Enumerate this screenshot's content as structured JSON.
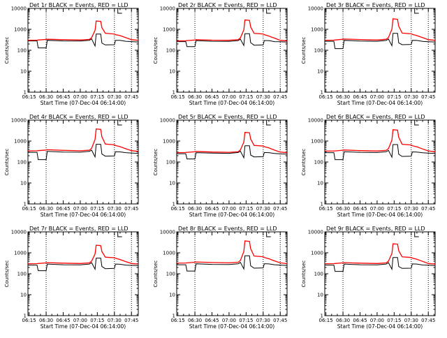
{
  "colors": {
    "events": "#000000",
    "lld": "#ff0000",
    "axis": "#000000",
    "background": "#ffffff"
  },
  "xlabel": "Start Time (07-Dec-04 06:14:00)",
  "ylabel": "Counts/sec",
  "x_tick_labels": [
    "06:15",
    "06:30",
    "06:45",
    "07:00",
    "07:15",
    "07:30",
    "07:45"
  ],
  "y_tick_labels": [
    "1",
    "10",
    "100",
    "1000",
    "10000"
  ],
  "chart_data": [
    {
      "type": "line",
      "title": "Det 1r BLACK = Events, RED = LLD",
      "y_scale": "log",
      "ylim": [
        1,
        10000
      ],
      "xlim": [
        "06:14",
        "07:51"
      ],
      "grid": false,
      "annotation": "dotted vertical markers at 06:30, 07:30, 07:45",
      "x": [
        "06:14",
        "06:22",
        "06:23",
        "06:30",
        "06:31",
        "06:45",
        "07:00",
        "07:08",
        "07:10",
        "07:13",
        "07:14",
        "07:18",
        "07:19",
        "07:22",
        "07:30",
        "07:31",
        "07:35",
        "07:40",
        "07:45",
        "07:51"
      ],
      "series": [
        {
          "name": "Events",
          "color": "#000000",
          "values": [
            280,
            280,
            130,
            130,
            300,
            280,
            275,
            300,
            350,
            160,
            600,
            600,
            220,
            180,
            185,
            300,
            300,
            270,
            260,
            250
          ]
        },
        {
          "name": "LLD",
          "color": "#ff0000",
          "values": [
            300,
            305,
            310,
            330,
            340,
            320,
            310,
            330,
            400,
            900,
            2500,
            2400,
            1200,
            650,
            600,
            560,
            500,
            400,
            320,
            300
          ]
        }
      ]
    },
    {
      "type": "line",
      "title": "Det 2r BLACK = Events, RED = LLD",
      "y_scale": "log",
      "ylim": [
        1,
        10000
      ],
      "xlim": [
        "06:14",
        "07:51"
      ],
      "grid": false,
      "annotation": "dotted vertical markers at 06:30, 07:30, 07:45",
      "x": [
        "06:14",
        "06:22",
        "06:23",
        "06:30",
        "06:31",
        "06:45",
        "07:00",
        "07:08",
        "07:10",
        "07:13",
        "07:14",
        "07:18",
        "07:19",
        "07:22",
        "07:30",
        "07:31",
        "07:35",
        "07:40",
        "07:45",
        "07:51"
      ],
      "series": [
        {
          "name": "Events",
          "color": "#000000",
          "values": [
            260,
            260,
            150,
            150,
            290,
            270,
            265,
            290,
            340,
            170,
            620,
            620,
            230,
            175,
            180,
            290,
            290,
            260,
            255,
            245
          ]
        },
        {
          "name": "LLD",
          "color": "#ff0000",
          "values": [
            280,
            285,
            290,
            310,
            320,
            305,
            300,
            320,
            390,
            950,
            2800,
            2700,
            1300,
            640,
            600,
            560,
            480,
            380,
            300,
            280
          ]
        }
      ]
    },
    {
      "type": "line",
      "title": "Det 3r BLACK = Events, RED = LLD",
      "y_scale": "log",
      "ylim": [
        1,
        10000
      ],
      "xlim": [
        "06:14",
        "07:51"
      ],
      "grid": false,
      "annotation": "dotted vertical markers at 06:30, 07:30, 07:45",
      "x": [
        "06:14",
        "06:22",
        "06:23",
        "06:30",
        "06:31",
        "06:45",
        "07:00",
        "07:08",
        "07:10",
        "07:13",
        "07:14",
        "07:18",
        "07:19",
        "07:22",
        "07:30",
        "07:31",
        "07:35",
        "07:40",
        "07:45",
        "07:51"
      ],
      "series": [
        {
          "name": "Events",
          "color": "#000000",
          "values": [
            270,
            270,
            120,
            120,
            300,
            275,
            270,
            295,
            345,
            165,
            640,
            640,
            225,
            185,
            190,
            300,
            295,
            265,
            258,
            250
          ]
        },
        {
          "name": "LLD",
          "color": "#ff0000",
          "values": [
            300,
            305,
            310,
            335,
            345,
            325,
            310,
            335,
            410,
            1000,
            3200,
            3000,
            1400,
            660,
            610,
            570,
            500,
            400,
            320,
            300
          ]
        }
      ]
    },
    {
      "type": "line",
      "title": "Det 4r BLACK = Events, RED = LLD",
      "y_scale": "log",
      "ylim": [
        1,
        10000
      ],
      "xlim": [
        "06:14",
        "07:51"
      ],
      "grid": false,
      "annotation": "dotted vertical markers at 06:30, 07:30, 07:45",
      "x": [
        "06:14",
        "06:22",
        "06:23",
        "06:30",
        "06:31",
        "06:45",
        "07:00",
        "07:08",
        "07:10",
        "07:13",
        "07:14",
        "07:18",
        "07:19",
        "07:22",
        "07:30",
        "07:31",
        "07:35",
        "07:40",
        "07:45",
        "07:51"
      ],
      "series": [
        {
          "name": "Events",
          "color": "#000000",
          "values": [
            290,
            290,
            130,
            130,
            320,
            300,
            295,
            320,
            370,
            175,
            700,
            700,
            240,
            190,
            195,
            310,
            305,
            280,
            270,
            260
          ]
        },
        {
          "name": "LLD",
          "color": "#ff0000",
          "values": [
            340,
            345,
            350,
            375,
            385,
            360,
            345,
            370,
            450,
            1200,
            3800,
            3600,
            1600,
            720,
            660,
            610,
            540,
            430,
            350,
            320
          ]
        }
      ]
    },
    {
      "type": "line",
      "title": "Det 5r BLACK = Events, RED = LLD",
      "y_scale": "log",
      "ylim": [
        1,
        10000
      ],
      "xlim": [
        "06:14",
        "07:51"
      ],
      "grid": false,
      "annotation": "dotted vertical markers at 06:30, 07:30, 07:45",
      "x": [
        "06:14",
        "06:22",
        "06:23",
        "06:30",
        "06:31",
        "06:45",
        "07:00",
        "07:08",
        "07:10",
        "07:13",
        "07:14",
        "07:18",
        "07:19",
        "07:22",
        "07:30",
        "07:31",
        "07:35",
        "07:40",
        "07:45",
        "07:51"
      ],
      "series": [
        {
          "name": "Events",
          "color": "#000000",
          "values": [
            250,
            250,
            140,
            140,
            280,
            265,
            260,
            285,
            330,
            160,
            600,
            600,
            215,
            175,
            180,
            285,
            280,
            255,
            248,
            240
          ]
        },
        {
          "name": "LLD",
          "color": "#ff0000",
          "values": [
            280,
            285,
            290,
            310,
            320,
            300,
            290,
            310,
            380,
            900,
            2600,
            2500,
            1250,
            620,
            580,
            540,
            470,
            370,
            300,
            280
          ]
        }
      ]
    },
    {
      "type": "line",
      "title": "Det 6r BLACK = Events, RED = LLD",
      "y_scale": "log",
      "ylim": [
        1,
        10000
      ],
      "xlim": [
        "06:14",
        "07:51"
      ],
      "grid": false,
      "annotation": "dotted vertical markers at 06:30, 07:30, 07:45",
      "x": [
        "06:14",
        "06:22",
        "06:23",
        "06:30",
        "06:31",
        "06:45",
        "07:00",
        "07:08",
        "07:10",
        "07:13",
        "07:14",
        "07:18",
        "07:19",
        "07:22",
        "07:30",
        "07:31",
        "07:35",
        "07:40",
        "07:45",
        "07:51"
      ],
      "series": [
        {
          "name": "Events",
          "color": "#000000",
          "values": [
            280,
            280,
            130,
            130,
            310,
            290,
            285,
            310,
            360,
            170,
            680,
            680,
            235,
            185,
            190,
            305,
            300,
            275,
            265,
            255
          ]
        },
        {
          "name": "LLD",
          "color": "#ff0000",
          "values": [
            330,
            335,
            340,
            365,
            375,
            350,
            335,
            360,
            440,
            1100,
            3500,
            3300,
            1500,
            700,
            650,
            600,
            530,
            420,
            340,
            310
          ]
        }
      ]
    },
    {
      "type": "line",
      "title": "Det 7r BLACK = Events, RED = LLD",
      "y_scale": "log",
      "ylim": [
        1,
        10000
      ],
      "xlim": [
        "06:14",
        "07:51"
      ],
      "grid": false,
      "annotation": "dotted vertical markers at 06:30, 07:30, 07:45",
      "x": [
        "06:14",
        "06:22",
        "06:23",
        "06:30",
        "06:31",
        "06:45",
        "07:00",
        "07:08",
        "07:10",
        "07:13",
        "07:14",
        "07:18",
        "07:19",
        "07:22",
        "07:30",
        "07:31",
        "07:35",
        "07:40",
        "07:45",
        "07:51"
      ],
      "series": [
        {
          "name": "Events",
          "color": "#000000",
          "values": [
            260,
            260,
            140,
            140,
            290,
            270,
            265,
            290,
            340,
            165,
            560,
            560,
            220,
            175,
            180,
            290,
            285,
            260,
            252,
            245
          ]
        },
        {
          "name": "LLD",
          "color": "#ff0000",
          "values": [
            300,
            305,
            310,
            330,
            340,
            320,
            310,
            330,
            400,
            880,
            2300,
            2200,
            1150,
            620,
            580,
            550,
            480,
            380,
            310,
            290
          ]
        }
      ]
    },
    {
      "type": "line",
      "title": "Det 8r BLACK = Events, RED = LLD",
      "y_scale": "log",
      "ylim": [
        1,
        10000
      ],
      "xlim": [
        "06:14",
        "07:51"
      ],
      "grid": false,
      "annotation": "dotted vertical markers at 06:30, 07:30, 07:45",
      "x": [
        "06:14",
        "06:22",
        "06:23",
        "06:30",
        "06:31",
        "06:45",
        "07:00",
        "07:08",
        "07:10",
        "07:13",
        "07:14",
        "07:18",
        "07:19",
        "07:22",
        "07:30",
        "07:31",
        "07:35",
        "07:40",
        "07:45",
        "07:51"
      ],
      "series": [
        {
          "name": "Events",
          "color": "#000000",
          "values": [
            270,
            270,
            135,
            135,
            300,
            280,
            275,
            300,
            350,
            170,
            720,
            720,
            240,
            185,
            190,
            300,
            295,
            270,
            260,
            250
          ]
        },
        {
          "name": "LLD",
          "color": "#ff0000",
          "values": [
            320,
            325,
            330,
            355,
            365,
            345,
            330,
            355,
            430,
            1150,
            3700,
            3500,
            1550,
            700,
            650,
            600,
            520,
            410,
            330,
            305
          ]
        }
      ]
    },
    {
      "type": "line",
      "title": "Det 9r BLACK = Events, RED = LLD",
      "y_scale": "log",
      "ylim": [
        1,
        10000
      ],
      "xlim": [
        "06:14",
        "07:51"
      ],
      "grid": false,
      "annotation": "dotted vertical markers at 06:30, 07:30, 07:45",
      "x": [
        "06:14",
        "06:22",
        "06:23",
        "06:30",
        "06:31",
        "06:45",
        "07:00",
        "07:08",
        "07:10",
        "07:13",
        "07:14",
        "07:18",
        "07:19",
        "07:22",
        "07:30",
        "07:31",
        "07:35",
        "07:40",
        "07:45",
        "07:51"
      ],
      "series": [
        {
          "name": "Events",
          "color": "#000000",
          "values": [
            260,
            260,
            130,
            130,
            290,
            270,
            265,
            290,
            340,
            165,
            600,
            600,
            220,
            180,
            185,
            295,
            290,
            262,
            255,
            245
          ]
        },
        {
          "name": "LLD",
          "color": "#ff0000",
          "values": [
            300,
            305,
            310,
            330,
            340,
            320,
            310,
            330,
            400,
            920,
            2700,
            2600,
            1250,
            640,
            600,
            560,
            490,
            390,
            310,
            290
          ]
        }
      ]
    }
  ]
}
